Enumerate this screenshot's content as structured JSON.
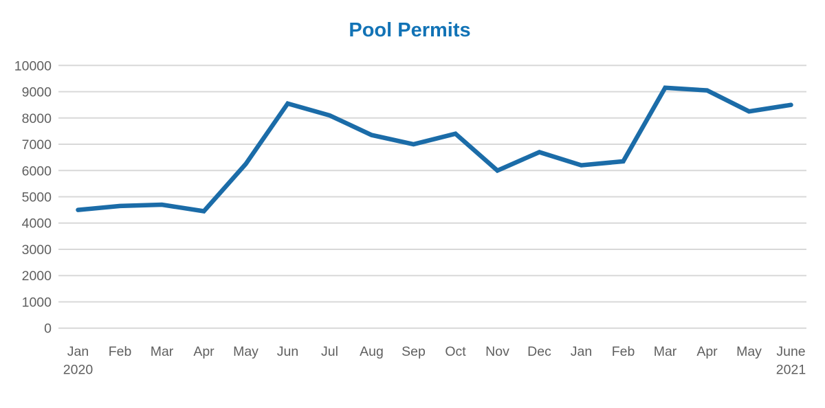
{
  "chart_data": {
    "type": "line",
    "title": "Pool Permits",
    "categories": [
      "Jan",
      "Feb",
      "Mar",
      "Apr",
      "May",
      "Jun",
      "Jul",
      "Aug",
      "Sep",
      "Oct",
      "Nov",
      "Dec",
      "Jan",
      "Feb",
      "Mar",
      "Apr",
      "May",
      "June"
    ],
    "category_year_labels": [
      "2020",
      "",
      "",
      "",
      "",
      "",
      "",
      "",
      "",
      "",
      "",
      "",
      "",
      "",
      "",
      "",
      "",
      "2021"
    ],
    "series": [
      {
        "name": "Pool Permits",
        "values": [
          4500,
          4650,
          4700,
          4450,
          6250,
          8550,
          8100,
          7350,
          7000,
          7400,
          6000,
          6700,
          6200,
          6350,
          9150,
          9050,
          8250,
          8500
        ]
      }
    ],
    "ylim": [
      0,
      10000
    ],
    "yticks": [
      0,
      1000,
      2000,
      3000,
      4000,
      5000,
      6000,
      7000,
      8000,
      9000,
      10000
    ],
    "xlabel": "",
    "ylabel": "",
    "grid": "horizontal",
    "legend": "none"
  },
  "style": {
    "title_color": "#1273B6",
    "line_color": "#1B6CA8",
    "grid_color": "#D8D8D8",
    "axis_label_color": "#5F5F5F",
    "background": "#FFFFFF"
  }
}
